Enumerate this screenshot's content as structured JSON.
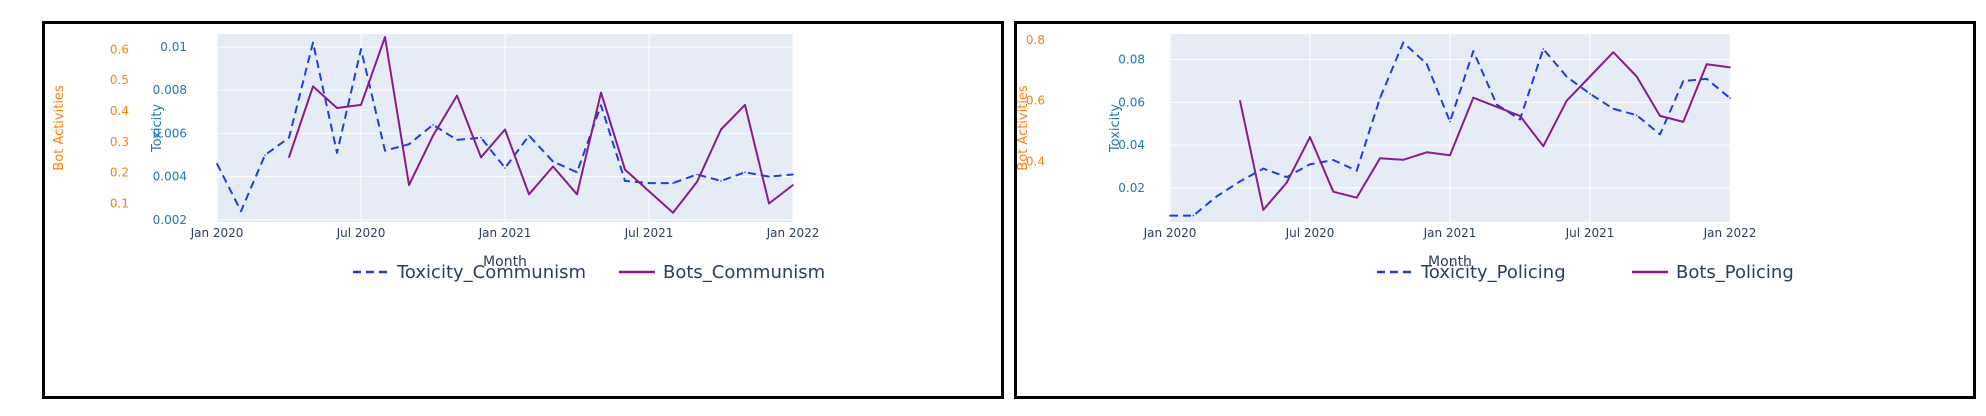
{
  "colors": {
    "toxicity": "#1f3fe0",
    "bots": "#8b1a8b",
    "bot_axis": "#ff7f0e",
    "tox_axis": "#1f77b4",
    "plot_bg": "#e5ecf6",
    "grid": "#ffffff"
  },
  "chart_data": [
    {
      "type": "line",
      "xlabel": "Month",
      "x_ticks": [
        "Jan 2020",
        "Jul 2020",
        "Jan 2021",
        "Jul 2021",
        "Jan 2022"
      ],
      "x_range": [
        "2020-01",
        "2022-01"
      ],
      "y_left_label": "Bot Activities",
      "y_left_ticks": [
        "0.1",
        "0.2",
        "0.3",
        "0.4",
        "0.5",
        "0.6"
      ],
      "y_left_range": [
        0.04,
        0.65
      ],
      "y_right_label": "Toxicity",
      "y_right_ticks": [
        "0.002",
        "0.004",
        "0.006",
        "0.008",
        "0.01"
      ],
      "y_right_range": [
        0.0019,
        0.0106
      ],
      "grid": true,
      "legend_position": "bottom-right",
      "series": [
        {
          "name": "Toxicity_Communism",
          "axis": "toxicity",
          "style": "dashed",
          "x": [
            "2020-01",
            "2020-02",
            "2020-03",
            "2020-04",
            "2020-05",
            "2020-06",
            "2020-07",
            "2020-08",
            "2020-09",
            "2020-10",
            "2020-11",
            "2020-12",
            "2021-01",
            "2021-02",
            "2021-03",
            "2021-04",
            "2021-05",
            "2021-06",
            "2021-07",
            "2021-08",
            "2021-09",
            "2021-10",
            "2021-11",
            "2021-12",
            "2022-01"
          ],
          "values": [
            0.0046,
            0.0024,
            0.005,
            0.0058,
            0.0102,
            0.0051,
            0.0099,
            0.0052,
            0.0055,
            0.0064,
            0.0057,
            0.0058,
            0.0044,
            0.0059,
            0.0047,
            0.0042,
            0.0073,
            0.0038,
            0.0037,
            0.0037,
            0.0041,
            0.0038,
            0.0042,
            0.004,
            0.0041
          ]
        },
        {
          "name": "Bots_Communism",
          "axis": "bots",
          "style": "solid",
          "x": [
            "2020-04",
            "2020-05",
            "2020-06",
            "2020-07",
            "2020-08",
            "2020-09",
            "2020-10",
            "2020-11",
            "2020-12",
            "2021-01",
            "2021-02",
            "2021-03",
            "2021-04",
            "2021-05",
            "2021-06",
            "2021-07",
            "2021-08",
            "2021-09",
            "2021-10",
            "2021-11",
            "2021-12",
            "2022-01"
          ],
          "values": [
            0.25,
            0.48,
            0.41,
            0.42,
            0.64,
            0.16,
            0.32,
            0.45,
            0.25,
            0.34,
            0.13,
            0.22,
            0.13,
            0.46,
            0.21,
            0.14,
            0.07,
            0.17,
            0.34,
            0.42,
            0.1,
            0.16
          ]
        }
      ]
    },
    {
      "type": "line",
      "xlabel": "Month",
      "x_ticks": [
        "Jan 2020",
        "Jul 2020",
        "Jan 2021",
        "Jul 2021",
        "Jan 2022"
      ],
      "x_range": [
        "2020-01",
        "2022-01"
      ],
      "y_left_label": "Bot Activities",
      "y_left_ticks": [
        "0.4",
        "0.6",
        "0.8"
      ],
      "y_left_range": [
        0.2,
        0.82
      ],
      "y_right_label": "Toxicity",
      "y_right_ticks": [
        "0.02",
        "0.04",
        "0.06",
        "0.08"
      ],
      "y_right_range": [
        0.004,
        0.092
      ],
      "grid": true,
      "legend_position": "bottom-right",
      "series": [
        {
          "name": "Toxicity_Policing",
          "axis": "toxicity",
          "style": "dashed",
          "x": [
            "2020-01",
            "2020-02",
            "2020-03",
            "2020-04",
            "2020-05",
            "2020-06",
            "2020-07",
            "2020-08",
            "2020-09",
            "2020-10",
            "2020-11",
            "2020-12",
            "2021-01",
            "2021-02",
            "2021-03",
            "2021-04",
            "2021-05",
            "2021-06",
            "2021-07",
            "2021-08",
            "2021-09",
            "2021-10",
            "2021-11",
            "2021-12",
            "2022-01"
          ],
          "values": [
            0.007,
            0.007,
            0.016,
            0.023,
            0.029,
            0.025,
            0.031,
            0.033,
            0.028,
            0.062,
            0.088,
            0.078,
            0.051,
            0.084,
            0.059,
            0.052,
            0.085,
            0.072,
            0.064,
            0.057,
            0.054,
            0.045,
            0.07,
            0.071,
            0.062
          ]
        },
        {
          "name": "Bots_Policing",
          "axis": "bots",
          "style": "solid",
          "x": [
            "2020-04",
            "2020-05",
            "2020-06",
            "2020-07",
            "2020-08",
            "2020-09",
            "2020-10",
            "2020-11",
            "2020-12",
            "2021-01",
            "2021-02",
            "2021-03",
            "2021-04",
            "2021-05",
            "2021-06",
            "2021-07",
            "2021-08",
            "2021-09",
            "2021-10",
            "2021-11",
            "2021-12",
            "2022-01"
          ],
          "values": [
            0.6,
            0.24,
            0.33,
            0.48,
            0.3,
            0.28,
            0.41,
            0.405,
            0.43,
            0.42,
            0.61,
            0.58,
            0.55,
            0.45,
            0.6,
            0.68,
            0.76,
            0.68,
            0.55,
            0.53,
            0.72,
            0.71
          ]
        }
      ]
    }
  ]
}
